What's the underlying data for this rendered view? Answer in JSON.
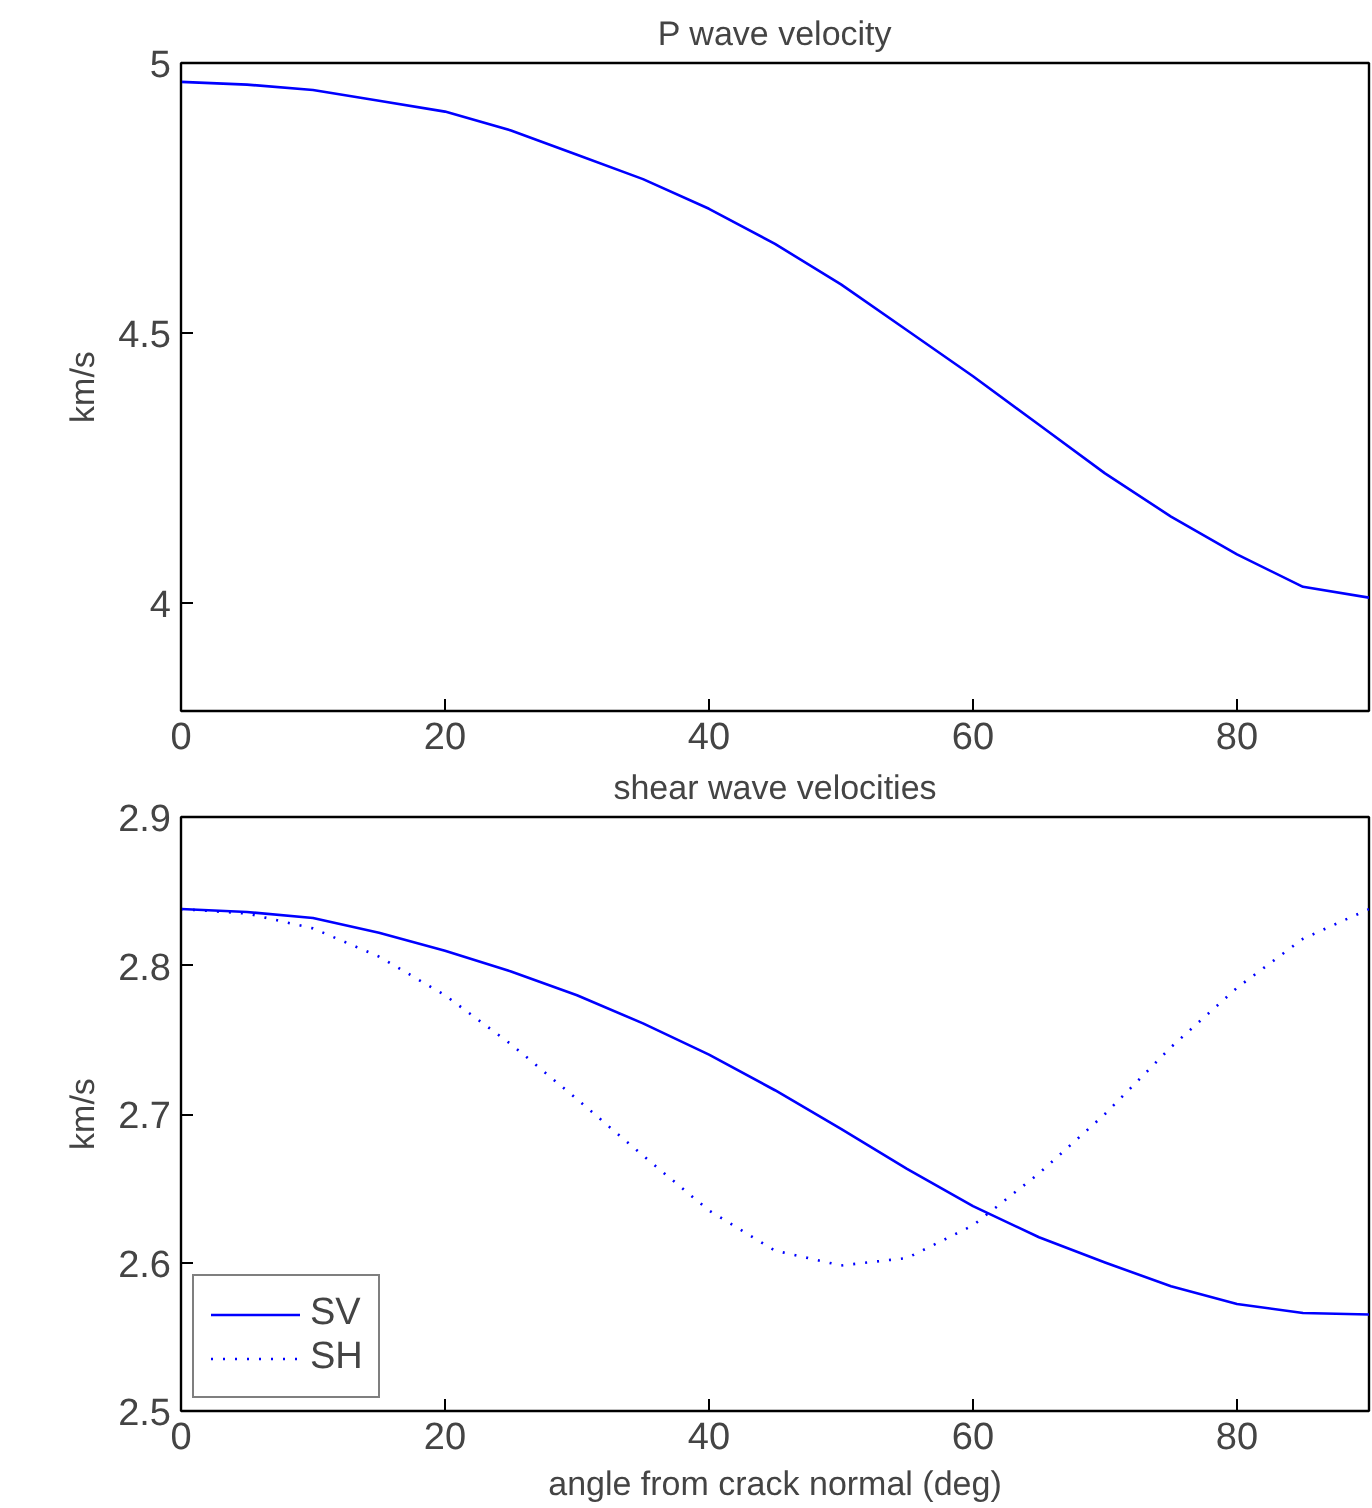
{
  "chart_data": [
    {
      "type": "line",
      "title": "P wave velocity",
      "ylabel": "km/s",
      "x": [
        0,
        5,
        10,
        15,
        20,
        25,
        30,
        35,
        40,
        45,
        50,
        55,
        60,
        65,
        70,
        75,
        80,
        85,
        90
      ],
      "xlim": [
        0,
        90
      ],
      "xticks": [
        0,
        20,
        40,
        60,
        80
      ],
      "ylim": [
        3.8,
        5
      ],
      "yticks": [
        4,
        4.5,
        5
      ],
      "grid": false,
      "legend": false,
      "line_style": "solid",
      "series": [
        {
          "color": "#0000ff",
          "values": [
            4.965,
            4.96,
            4.95,
            4.93,
            4.91,
            4.875,
            4.83,
            4.785,
            4.73,
            4.665,
            4.59,
            4.505,
            4.42,
            4.33,
            4.24,
            4.16,
            4.09,
            4.03,
            4.01
          ]
        }
      ]
    },
    {
      "type": "line",
      "title": "shear wave velocities",
      "xlabel": "angle from crack normal (deg)",
      "ylabel": "km/s",
      "x": [
        0,
        5,
        10,
        15,
        20,
        25,
        30,
        35,
        40,
        45,
        50,
        55,
        60,
        65,
        70,
        75,
        80,
        85,
        90
      ],
      "xlim": [
        0,
        90
      ],
      "xticks": [
        0,
        20,
        40,
        60,
        80
      ],
      "ylim": [
        2.5,
        2.9
      ],
      "yticks": [
        2.5,
        2.6,
        2.7,
        2.8,
        2.9
      ],
      "grid": false,
      "legend": "bottom left",
      "series": [
        {
          "name": "SV",
          "color": "#0000ff",
          "line_style": "solid",
          "values": [
            2.838,
            2.836,
            2.832,
            2.822,
            2.81,
            2.796,
            2.78,
            2.761,
            2.74,
            2.716,
            2.69,
            2.663,
            2.638,
            2.617,
            2.6,
            2.584,
            2.572,
            2.566,
            2.565
          ]
        },
        {
          "name": "SH",
          "color": "#0000ff",
          "line_style": "dotted",
          "values": [
            2.838,
            2.835,
            2.825,
            2.806,
            2.78,
            2.747,
            2.71,
            2.672,
            2.635,
            2.608,
            2.598,
            2.603,
            2.625,
            2.66,
            2.7,
            2.745,
            2.785,
            2.818,
            2.838
          ]
        }
      ]
    }
  ]
}
